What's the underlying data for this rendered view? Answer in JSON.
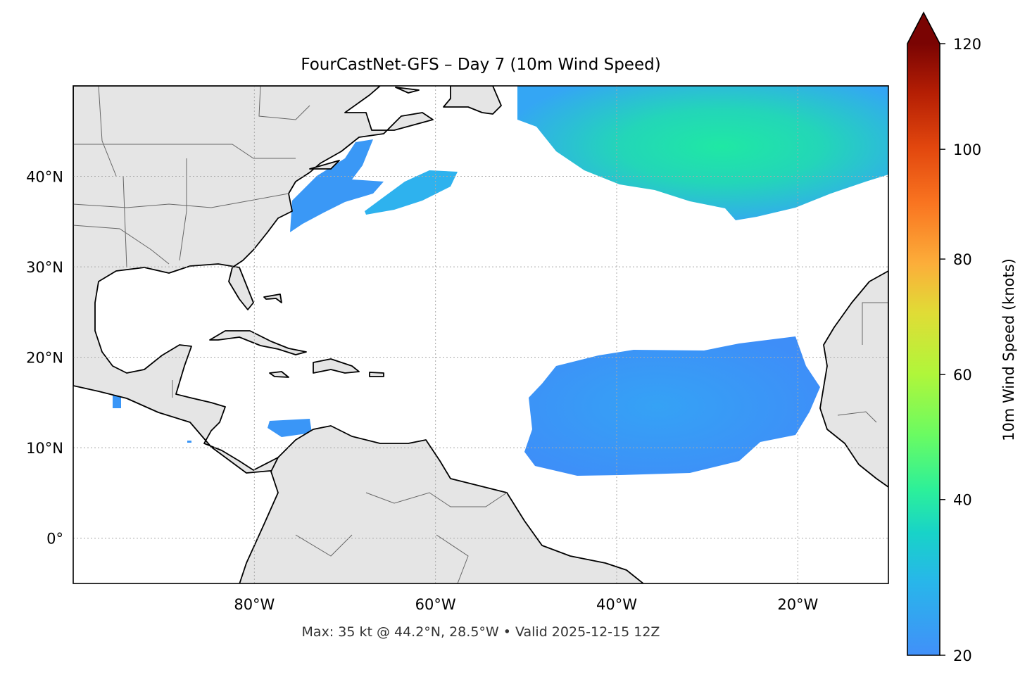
{
  "title": "FourCastNet-GFS – Day 7 (10m Wind Speed)",
  "footer": "Max: 35 kt @ 44.2°N, 28.5°W • Valid 2025-12-15 12Z",
  "chart_data": {
    "type": "heatmap",
    "map_extent": {
      "lon": [
        -100,
        -10
      ],
      "lat": [
        -5,
        50
      ]
    },
    "lon_ticks": [
      {
        "value": -80,
        "label": "80°W"
      },
      {
        "value": -60,
        "label": "60°W"
      },
      {
        "value": -40,
        "label": "40°W"
      },
      {
        "value": -20,
        "label": "20°W"
      }
    ],
    "lat_ticks": [
      {
        "value": 0,
        "label": "0°"
      },
      {
        "value": 10,
        "label": "10°N"
      },
      {
        "value": 20,
        "label": "20°N"
      },
      {
        "value": 30,
        "label": "30°N"
      },
      {
        "value": 40,
        "label": "40°N"
      }
    ],
    "grid": true,
    "colorbar": {
      "label": "10m Wind Speed (knots)",
      "range": [
        20,
        120
      ],
      "norm": "power",
      "gamma": 0.85,
      "extend": "max",
      "colormap": "turbo",
      "ticks": [
        20,
        40,
        60,
        80,
        100,
        120
      ]
    },
    "max_wind": {
      "value_kt": 35,
      "lat": 44.2,
      "lon": -28.5
    },
    "land_color": "#e5e5e5",
    "ocean_color": "#ffffff"
  }
}
